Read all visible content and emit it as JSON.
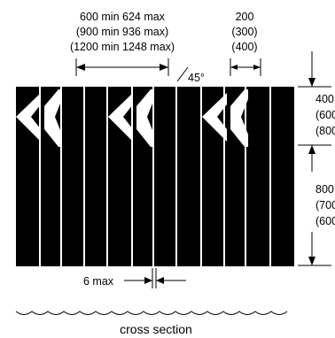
{
  "top_dims": {
    "line1": "600 min  624 max",
    "line2": "(900 min  936 max)",
    "line3": "(1200 min  1248 max)"
  },
  "space_dims": {
    "line1": "200",
    "line2": "(300)",
    "line3": "(400)"
  },
  "angle": "45°",
  "right_dims": {
    "upper": [
      "400",
      "(600",
      "(800"
    ],
    "lower": [
      "800",
      "(700",
      "(600"
    ]
  },
  "gap_label": "6 max",
  "caption": "cross section",
  "colors": {
    "ink": "#000000",
    "paper": "#ffffff"
  }
}
